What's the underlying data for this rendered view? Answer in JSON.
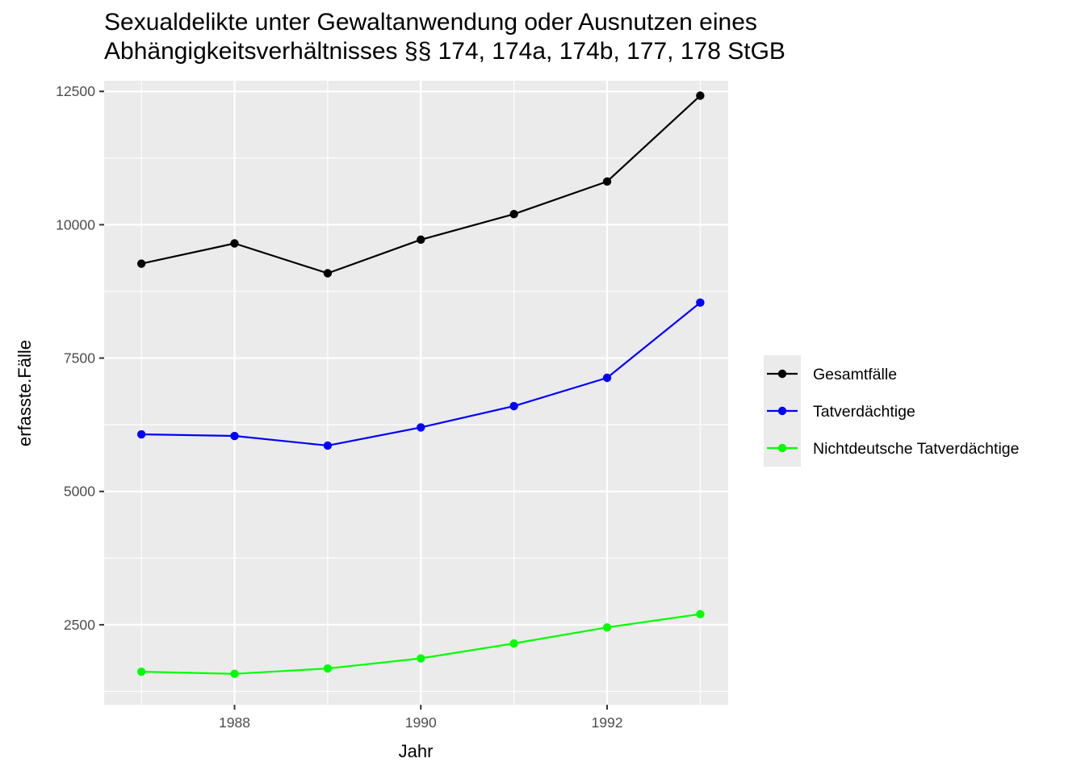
{
  "chart_data": {
    "type": "line",
    "title_lines": [
      "Sexualdelikte unter Gewaltanwendung oder Ausnutzen eines",
      "Abhängigkeitsverhältnisses §§ 174, 174a, 174b, 177, 178 StGB"
    ],
    "xlabel": "Jahr",
    "ylabel": "erfasste.Fälle",
    "x": [
      1987,
      1988,
      1989,
      1990,
      1991,
      1992,
      1993
    ],
    "xlim": [
      1986.6,
      1993.3
    ],
    "ylim": [
      1000,
      12700
    ],
    "x_ticks": [
      1988,
      1990,
      1992
    ],
    "x_tick_labels": [
      "1988",
      "1990",
      "1992"
    ],
    "y_ticks": [
      2500,
      5000,
      7500,
      10000,
      12500
    ],
    "y_tick_labels": [
      "2500",
      "5000",
      "7500",
      "10000",
      "12500"
    ],
    "grid": true,
    "legend_position": "right",
    "series": [
      {
        "name": "Gesamtfälle",
        "color": "#000000",
        "values": [
          9270,
          9650,
          9090,
          9720,
          10200,
          10810,
          12420
        ]
      },
      {
        "name": "Tatverdächtige",
        "color": "#0000ff",
        "values": [
          6070,
          6040,
          5860,
          6200,
          6600,
          7130,
          8540
        ]
      },
      {
        "name": "Nichtdeutsche Tatverdächtige",
        "color": "#00ff00",
        "values": [
          1620,
          1580,
          1680,
          1870,
          2150,
          2450,
          2700
        ]
      }
    ]
  }
}
